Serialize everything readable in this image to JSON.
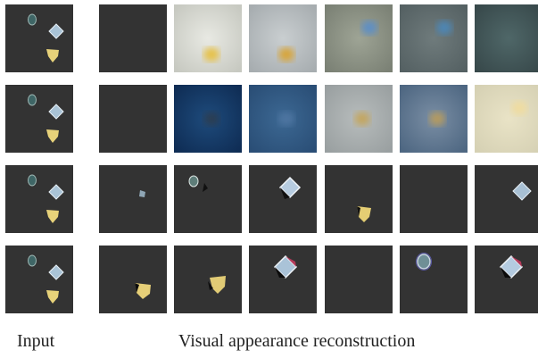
{
  "captions": {
    "input": "Input",
    "reconstruction": "Visual appearance reconstruction"
  },
  "colors": {
    "dark_bg": "#333333",
    "object_blue": "#a9c3d6",
    "object_yellow": "#e7d27a",
    "object_teal": "#3f6666"
  },
  "rows": [
    {
      "input": "three-objects",
      "reconstructions": [
        {
          "kind": "empty"
        },
        {
          "kind": "gradient",
          "bg": "#e8e9e3",
          "edge": "#c7c9c1",
          "blob": "#e6c14a",
          "blob_pos": "bottom"
        },
        {
          "kind": "gradient",
          "bg": "#c9ced0",
          "edge": "#a7adb0",
          "blob": "#d8a53a",
          "blob_pos": "bottom"
        },
        {
          "kind": "gradient",
          "bg": "#9ea495",
          "edge": "#7b8175",
          "blob": "#5f8fc4",
          "blob_pos": "top"
        },
        {
          "kind": "gradient",
          "bg": "#6f7b7c",
          "edge": "#556163",
          "blob": "#4e86b4",
          "blob_pos": "top"
        },
        {
          "kind": "gradient",
          "bg": "#4f6768",
          "edge": "#38494b",
          "blob": "#5b7883",
          "blob_pos": "none"
        }
      ]
    },
    {
      "input": "three-objects",
      "reconstructions": [
        {
          "kind": "empty"
        },
        {
          "kind": "gradient",
          "bg": "#1e4b7c",
          "edge": "#0f2d55",
          "blob": "#2a3e52",
          "blob_pos": "center"
        },
        {
          "kind": "gradient",
          "bg": "#3c6893",
          "edge": "#2a4e76",
          "blob": "#4d74a0",
          "blob_pos": "center"
        },
        {
          "kind": "gradient",
          "bg": "#b7bcbc",
          "edge": "#9aa0a1",
          "blob": "#c3a660",
          "blob_pos": "center"
        },
        {
          "kind": "gradient",
          "bg": "#7a8ea4",
          "edge": "#4e6782",
          "blob": "#b39a60",
          "blob_pos": "center"
        },
        {
          "kind": "gradient",
          "bg": "#e9e3c6",
          "edge": "#d6d1b4",
          "blob": "#efdca0",
          "blob_pos": "top"
        }
      ]
    },
    {
      "input": "three-objects",
      "reconstructions": [
        {
          "kind": "blob",
          "color": "#8fa6b5",
          "shape": "small"
        },
        {
          "kind": "blob",
          "color": "#5e7d79",
          "shape": "oval"
        },
        {
          "kind": "blob",
          "color": "#b7cce0",
          "shape": "diamond"
        },
        {
          "kind": "blob",
          "color": "#e4cd73",
          "shape": "shield-low"
        },
        {
          "kind": "empty"
        },
        {
          "kind": "blob",
          "color": "#a8c0d4",
          "shape": "diamond-right"
        }
      ]
    },
    {
      "input": "three-objects",
      "reconstructions": [
        {
          "kind": "blob",
          "color": "#e6cf78",
          "shape": "shield-bottom"
        },
        {
          "kind": "blob",
          "color": "#e1cb75",
          "shape": "shield-bottom-right"
        },
        {
          "kind": "blob",
          "color": "#aac3d8",
          "shape": "diamond-edge"
        },
        {
          "kind": "empty"
        },
        {
          "kind": "blob",
          "color": "#6f8f96",
          "shape": "oval-outline"
        },
        {
          "kind": "blob",
          "color": "#b4cbe0",
          "shape": "diamond-edge"
        }
      ]
    }
  ]
}
